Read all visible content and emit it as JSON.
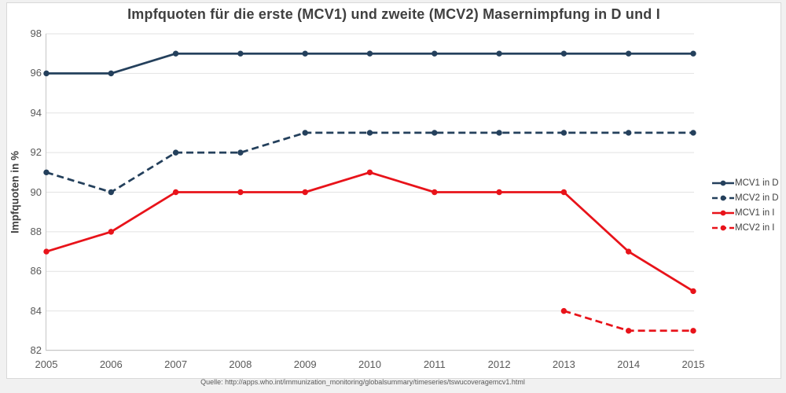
{
  "page": {
    "source": "Quelle: http://apps.who.int/immunization_monitoring/globalsummary/timeseries/tswucoveragemcv1.html"
  },
  "chart_data": {
    "type": "line",
    "title": "Impfquoten für die erste (MCV1) und zweite (MCV2) Masernimpfung in D und I",
    "xlabel": "",
    "ylabel": "Impfquoten in %",
    "ylim": [
      82,
      98
    ],
    "ytick_step": 2,
    "grid": true,
    "legend_position": "right",
    "categories": [
      2005,
      2006,
      2007,
      2008,
      2009,
      2010,
      2011,
      2012,
      2013,
      2014,
      2015
    ],
    "series": [
      {
        "name": "MCV1 in D",
        "color": "#24405c",
        "style": "solid",
        "values": [
          96,
          96,
          97,
          97,
          97,
          97,
          97,
          97,
          97,
          97,
          97
        ]
      },
      {
        "name": "MCV2 in D",
        "color": "#24405c",
        "style": "dashed",
        "values": [
          91,
          90,
          92,
          92,
          93,
          93,
          93,
          93,
          93,
          93,
          93
        ]
      },
      {
        "name": "MCV1 in I",
        "color": "#e8131a",
        "style": "solid",
        "values": [
          87,
          88,
          90,
          90,
          90,
          91,
          90,
          90,
          90,
          87,
          85
        ]
      },
      {
        "name": "MCV2 in I",
        "color": "#e8131a",
        "style": "dashed",
        "values": [
          null,
          null,
          null,
          null,
          null,
          null,
          null,
          null,
          84,
          83,
          83
        ]
      }
    ],
    "colors": {
      "germany_series": "#24405c",
      "italy_series": "#e8131a",
      "gridline": "#e2e2e2",
      "axis_line": "#c6c6c6",
      "title_text": "#404040",
      "tick_text": "#595959",
      "page_background": "#f1f1f1",
      "chart_background": "#ffffff"
    }
  }
}
